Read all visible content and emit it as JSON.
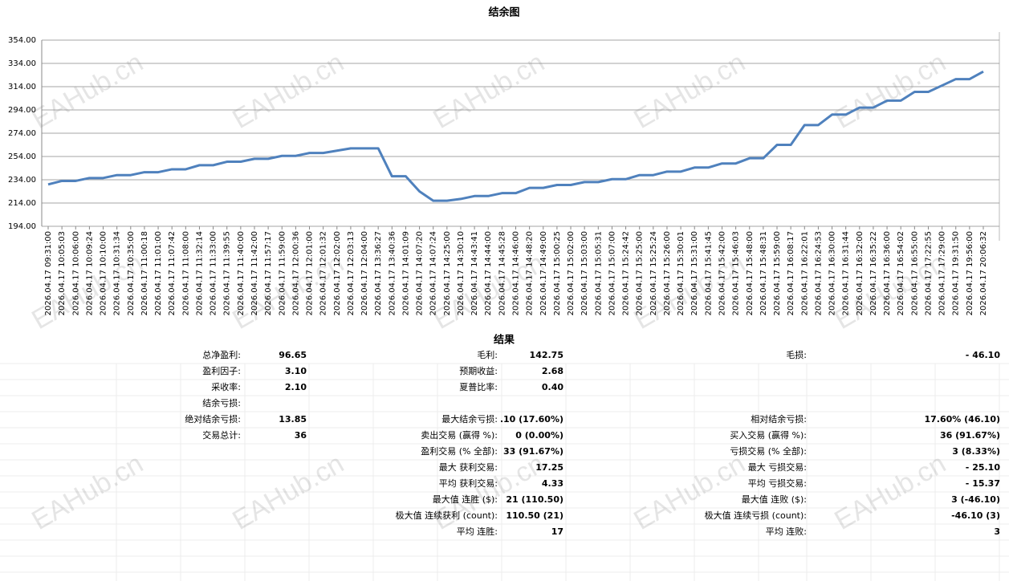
{
  "chart_data": {
    "type": "line",
    "title": "结余图",
    "categories": [
      "2026.04.17 09:31:00",
      "2026.04.17 10:05:03",
      "2026.04.17 10:06:00",
      "2026.04.17 10:09:24",
      "2026.04.17 10:10:00",
      "2026.04.17 10:31:34",
      "2026.04.17 10:35:00",
      "2026.04.17 11:00:18",
      "2026.04.17 11:01:00",
      "2026.04.17 11:07:42",
      "2026.04.17 11:08:00",
      "2026.04.17 11:32:14",
      "2026.04.17 11:33:00",
      "2026.04.17 11:39:55",
      "2026.04.17 11:40:00",
      "2026.04.17 11:42:00",
      "2026.04.17 11:57:17",
      "2026.04.17 11:59:00",
      "2026.04.17 12:00:36",
      "2026.04.17 12:01:00",
      "2026.04.17 12:01:32",
      "2026.04.17 12:02:00",
      "2026.04.17 12:03:13",
      "2026.04.17 12:04:00",
      "2026.04.17 13:36:27",
      "2026.04.17 13:40:36",
      "2026.04.17 14:01:09",
      "2026.04.17 14:07:20",
      "2026.04.17 14:07:24",
      "2026.04.17 14:25:00",
      "2026.04.17 14:30:10",
      "2026.04.17 14:43:41",
      "2026.04.17 14:44:00",
      "2026.04.17 14:45:28",
      "2026.04.17 14:46:00",
      "2026.04.17 14:48:20",
      "2026.04.17 14:49:00",
      "2026.04.17 15:00:25",
      "2026.04.17 15:02:00",
      "2026.04.17 15:03:00",
      "2026.04.17 15:05:31",
      "2026.04.17 15:07:00",
      "2026.04.17 15:24:42",
      "2026.04.17 15:25:00",
      "2026.04.17 15:25:24",
      "2026.04.17 15:26:00",
      "2026.04.17 15:30:01",
      "2026.04.17 15:31:00",
      "2026.04.17 15:41:45",
      "2026.04.17 15:42:00",
      "2026.04.17 15:46:03",
      "2026.04.17 15:48:00",
      "2026.04.17 15:48:31",
      "2026.04.17 15:59:00",
      "2026.04.17 16:08:17",
      "2026.04.17 16:22:01",
      "2026.04.17 16:24:53",
      "2026.04.17 16:30:00",
      "2026.04.17 16:31:44",
      "2026.04.17 16:32:00",
      "2026.04.17 16:35:22",
      "2026.04.17 16:36:00",
      "2026.04.17 16:54:02",
      "2026.04.17 16:55:00",
      "2026.04.17 17:22:55",
      "2026.04.17 17:29:00",
      "2026.04.17 19:31:50",
      "2026.04.17 19:56:00",
      "2026.04.17 20:06:32"
    ],
    "values": [
      230,
      233,
      233,
      235.5,
      235.5,
      238,
      238,
      240.5,
      240.5,
      243,
      243,
      246.5,
      246.5,
      249.5,
      249.5,
      252,
      252,
      254.5,
      254.5,
      257,
      257,
      259,
      261,
      261,
      261,
      237,
      237,
      224,
      216,
      216,
      217.5,
      220,
      220,
      222.5,
      222.5,
      227,
      227,
      229.5,
      229.5,
      232,
      232,
      234.5,
      234.5,
      238,
      238,
      241,
      241,
      244.5,
      244.5,
      248,
      248,
      252.5,
      252.5,
      264,
      264,
      281,
      281,
      290,
      290,
      296,
      296,
      302,
      302,
      309.5,
      309.5,
      315,
      320.5,
      320.5,
      327
    ],
    "color": "#4f81bd",
    "ylim": [
      194,
      354
    ],
    "yticks": [
      {
        "value": 194,
        "label": "194.00"
      },
      {
        "value": 214,
        "label": "214.00"
      },
      {
        "value": 234,
        "label": "234.00"
      },
      {
        "value": 254,
        "label": "254.00"
      },
      {
        "value": 274,
        "label": "274.00"
      },
      {
        "value": 294,
        "label": "294.00"
      },
      {
        "value": 314,
        "label": "314.00"
      },
      {
        "value": 334,
        "label": "334.00"
      },
      {
        "value": 354,
        "label": "354.00"
      }
    ],
    "grid": true
  },
  "watermark": "EAHub.cn",
  "results": {
    "title": "结果",
    "rows": [
      {
        "left": [
          "总净盈利:",
          "96.65"
        ],
        "middle": [
          "毛利:",
          "142.75"
        ],
        "right": [
          "毛损:",
          "- 46.10"
        ]
      },
      {
        "left": [
          "盈利因子:",
          "3.10"
        ],
        "middle": [
          "预期收益:",
          "2.68"
        ]
      },
      {
        "left": [
          "采收率:",
          "2.10"
        ],
        "middle": [
          "夏普比率:",
          "0.40"
        ]
      },
      {
        "left": [
          "结余亏损:"
        ]
      },
      {
        "left": [
          "绝对结余亏损:",
          "13.85"
        ],
        "middle": [
          "最大结余亏损:",
          ".10 (17.60%)"
        ],
        "right": [
          "相对结余亏损:",
          "17.60% (46.10)"
        ]
      },
      {
        "left": [
          "交易总计:",
          "36"
        ],
        "middle": [
          "卖出交易 (赢得 %):",
          "0 (0.00%)"
        ],
        "right": [
          "买入交易 (赢得 %):",
          "36 (91.67%)"
        ]
      },
      {
        "middle": [
          "盈利交易 (% 全部):",
          "33 (91.67%)"
        ],
        "right": [
          "亏损交易 (% 全部):",
          "3 (8.33%)"
        ]
      },
      {
        "middle": [
          "最大 获利交易:",
          "17.25"
        ],
        "right": [
          "最大 亏损交易:",
          "- 25.10"
        ]
      },
      {
        "middle": [
          "平均 获利交易:",
          "4.33"
        ],
        "right": [
          "平均 亏损交易:",
          "- 15.37"
        ]
      },
      {
        "middle": [
          "最大值 连胜 ($):",
          "21 (110.50)"
        ],
        "right": [
          "最大值 连败 ($):",
          "3 (-46.10)"
        ]
      },
      {
        "middle": [
          "极大值 连续获利 (count):",
          "110.50 (21)"
        ],
        "right": [
          "极大值 连续亏损 (count):",
          "-46.10 (3)"
        ]
      },
      {
        "middle": [
          "平均 连胜:",
          "17"
        ],
        "right": [
          "平均 连败:",
          "3"
        ]
      }
    ]
  }
}
